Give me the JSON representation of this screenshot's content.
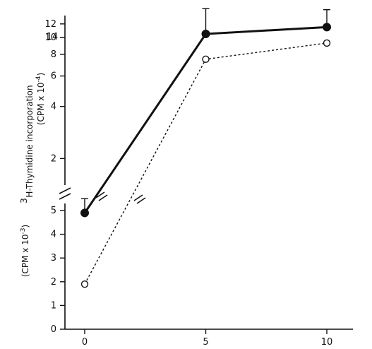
{
  "chart_data": {
    "type": "line",
    "x": [
      0,
      5,
      10
    ],
    "x_ticks": [
      "0",
      "5",
      "10"
    ],
    "y_axis_upper": {
      "label_super": "3",
      "label_main": "H-Thymidine incorporation",
      "label_unit_pre": "(CPM x 10",
      "label_unit_exp": "-4",
      "label_unit_post": ")",
      "scale": "log",
      "range": [
        1.5,
        12
      ],
      "ticks": [
        "2",
        "4",
        "6",
        "8",
        "10",
        "12"
      ]
    },
    "y_axis_lower": {
      "label_unit_pre": "(CPM x 10",
      "label_unit_exp": "-3",
      "label_unit_post": ")",
      "scale": "linear",
      "range": [
        0,
        6
      ],
      "ticks": [
        "0",
        "1",
        "2",
        "3",
        "4",
        "5"
      ]
    },
    "extra_tick_label": "14",
    "series": [
      {
        "style": "solid line, filled circles",
        "color": "#111111",
        "points": [
          {
            "x": 0,
            "y": 4.9,
            "unit": "CPM x 10^-3",
            "err": 0.6
          },
          {
            "x": 5,
            "y": 10.5,
            "unit": "CPM x 10^-4",
            "err": 4.2
          },
          {
            "x": 10,
            "y": 11.5,
            "unit": "CPM x 10^-4",
            "err": 3.0
          }
        ]
      },
      {
        "style": "dashed line, open circles",
        "color": "#111111",
        "points": [
          {
            "x": 0,
            "y": 1.9,
            "unit": "CPM x 10^-3"
          },
          {
            "x": 5,
            "y": 7.5,
            "unit": "CPM x 10^-4"
          },
          {
            "x": 10,
            "y": 9.3,
            "unit": "CPM x 10^-4"
          }
        ]
      }
    ],
    "axis_break": true
  }
}
